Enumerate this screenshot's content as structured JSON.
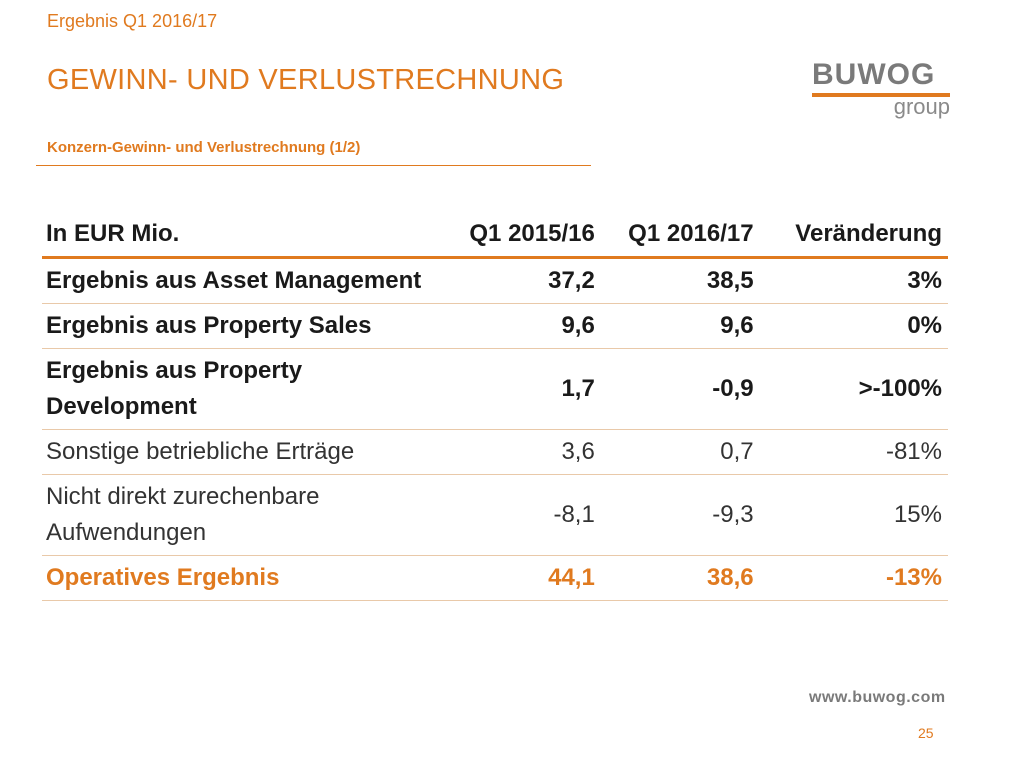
{
  "header": {
    "kicker": "Ergebnis Q1 2016/17",
    "title": "GEWINN- UND VERLUSTRECHNUNG",
    "subtitle": "Konzern-Gewinn- und Verlustrechnung (1/2)"
  },
  "logo": {
    "wordmark": "BUWOG",
    "sub": "group",
    "accent": "#e07a1f"
  },
  "table": {
    "columns": [
      "In EUR Mio.",
      "Q1 2015/16",
      "Q1 2016/17",
      "Veränderung"
    ],
    "rows": [
      {
        "label": "Ergebnis aus Asset Management",
        "q1_2015_16": "37,2",
        "q1_2016_17": "38,5",
        "change": "3%",
        "style": "bold"
      },
      {
        "label": "Ergebnis aus Property Sales",
        "q1_2015_16": "9,6",
        "q1_2016_17": "9,6",
        "change": "0%",
        "style": "bold"
      },
      {
        "label": "Ergebnis aus Property Development",
        "q1_2015_16": "1,7",
        "q1_2016_17": "-0,9",
        "change": ">-100%",
        "style": "bold"
      },
      {
        "label": "Sonstige betriebliche Erträge",
        "q1_2015_16": "3,6",
        "q1_2016_17": "0,7",
        "change": "-81%",
        "style": "normal"
      },
      {
        "label": "Nicht direkt zurechenbare Aufwendungen",
        "q1_2015_16": "-8,1",
        "q1_2016_17": "-9,3",
        "change": "15%",
        "style": "normal"
      },
      {
        "label": "Operatives Ergebnis",
        "q1_2015_16": "44,1",
        "q1_2016_17": "38,6",
        "change": "-13%",
        "style": "total"
      }
    ]
  },
  "footer": {
    "website": "www.buwog.com",
    "page_number": "25"
  }
}
